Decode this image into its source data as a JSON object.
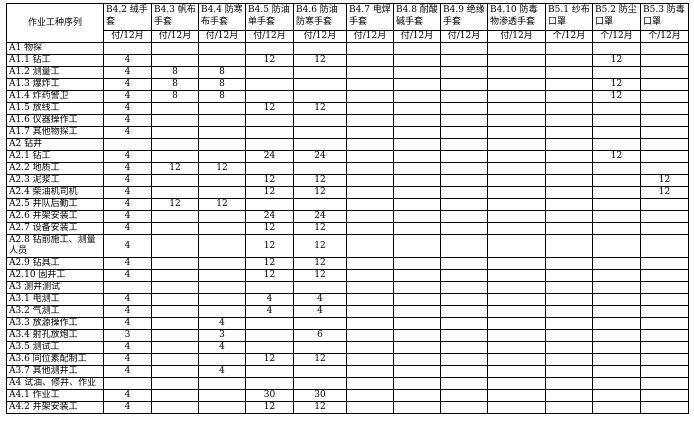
{
  "table": {
    "row_header": "作业工种序列",
    "columns": [
      {
        "code": "B4.2 绒手套",
        "unit": "付/12月"
      },
      {
        "code": "B4.3 帆布手套",
        "unit": "付/12月"
      },
      {
        "code": "B4.4 防寒布手套",
        "unit": "付/12月"
      },
      {
        "code": "B4.5 防油单手套",
        "unit": "付/12月"
      },
      {
        "code": "B4.6 防油防寒手套",
        "unit": "付/12月"
      },
      {
        "code": "B4.7 电焊手套",
        "unit": "付/12月"
      },
      {
        "code": "B4.8 耐酸碱手套",
        "unit": "付/12月"
      },
      {
        "code": "B4.9 绝缘手套",
        "unit": "付/12月"
      },
      {
        "code": "B4.10 防毒物渗透手套",
        "unit": "付/12月"
      },
      {
        "code": "B5.1 纱布口罩",
        "unit": "个/12月"
      },
      {
        "code": "B5.2 防尘口罩",
        "unit": "个/12月"
      },
      {
        "code": "B5.3 防毒口罩",
        "unit": "个/12月"
      }
    ],
    "rows": [
      {
        "label": "A1 物探",
        "values": [
          "",
          "",
          "",
          "",
          "",
          "",
          "",
          "",
          "",
          "",
          "",
          ""
        ]
      },
      {
        "label": "A1.1 钻工",
        "values": [
          "4",
          "",
          "",
          "12",
          "12",
          "",
          "",
          "",
          "",
          "",
          "12",
          ""
        ]
      },
      {
        "label": "A1.2 测量工",
        "values": [
          "4",
          "8",
          "8",
          "",
          "",
          "",
          "",
          "",
          "",
          "",
          "",
          ""
        ]
      },
      {
        "label": "A1.3 爆炸工",
        "values": [
          "4",
          "8",
          "8",
          "",
          "",
          "",
          "",
          "",
          "",
          "",
          "12",
          ""
        ]
      },
      {
        "label": "A1.4 炸药警卫",
        "values": [
          "4",
          "8",
          "8",
          "",
          "",
          "",
          "",
          "",
          "",
          "",
          "12",
          ""
        ]
      },
      {
        "label": "A1.5 放线工",
        "values": [
          "4",
          "",
          "",
          "12",
          "12",
          "",
          "",
          "",
          "",
          "",
          "",
          ""
        ]
      },
      {
        "label": "A1.6 仪器操作工",
        "values": [
          "4",
          "",
          "",
          "",
          "",
          "",
          "",
          "",
          "",
          "",
          "",
          ""
        ]
      },
      {
        "label": "A1.7 其他物探工",
        "values": [
          "4",
          "",
          "",
          "",
          "",
          "",
          "",
          "",
          "",
          "",
          "",
          ""
        ]
      },
      {
        "label": "A2 钻井",
        "values": [
          "",
          "",
          "",
          "",
          "",
          "",
          "",
          "",
          "",
          "",
          "",
          ""
        ]
      },
      {
        "label": "A2.1 钻工",
        "values": [
          "4",
          "",
          "",
          "24",
          "24",
          "",
          "",
          "",
          "",
          "",
          "12",
          ""
        ]
      },
      {
        "label": "A2.2 地质工",
        "values": [
          "4",
          "12",
          "12",
          "",
          "",
          "",
          "",
          "",
          "",
          "",
          "",
          ""
        ]
      },
      {
        "label": "A2.3 泥浆工",
        "values": [
          "4",
          "",
          "",
          "12",
          "12",
          "",
          "",
          "",
          "",
          "",
          "",
          "12"
        ]
      },
      {
        "label": "A2.4 柴油机司机",
        "values": [
          "4",
          "",
          "",
          "12",
          "12",
          "",
          "",
          "",
          "",
          "",
          "",
          "12"
        ]
      },
      {
        "label": "A2.5 井队后勤工",
        "values": [
          "4",
          "12",
          "12",
          "",
          "",
          "",
          "",
          "",
          "",
          "",
          "",
          ""
        ]
      },
      {
        "label": "A2.6 井架安装工",
        "values": [
          "4",
          "",
          "",
          "24",
          "24",
          "",
          "",
          "",
          "",
          "",
          "",
          ""
        ]
      },
      {
        "label": "A2.7 设备安装工",
        "values": [
          "4",
          "",
          "",
          "12",
          "12",
          "",
          "",
          "",
          "",
          "",
          "",
          ""
        ]
      },
      {
        "label": "A2.8 钻前施工、测量人员",
        "values": [
          "4",
          "",
          "",
          "12",
          "12",
          "",
          "",
          "",
          "",
          "",
          "",
          ""
        ]
      },
      {
        "label": "A2.9 钻具工",
        "values": [
          "4",
          "",
          "",
          "12",
          "12",
          "",
          "",
          "",
          "",
          "",
          "",
          ""
        ]
      },
      {
        "label": "A2.10 固井工",
        "values": [
          "4",
          "",
          "",
          "12",
          "12",
          "",
          "",
          "",
          "",
          "",
          "",
          ""
        ]
      },
      {
        "label": "A3 测井测试",
        "values": [
          "",
          "",
          "",
          "",
          "",
          "",
          "",
          "",
          "",
          "",
          "",
          ""
        ]
      },
      {
        "label": "A3.1 电测工",
        "values": [
          "4",
          "",
          "",
          "4",
          "4",
          "",
          "",
          "",
          "",
          "",
          "",
          ""
        ]
      },
      {
        "label": "A3.2 气测工",
        "values": [
          "4",
          "",
          "",
          "4",
          "4",
          "",
          "",
          "",
          "",
          "",
          "",
          ""
        ]
      },
      {
        "label": "A3.3 放源操作工",
        "values": [
          "4",
          "",
          "4",
          "",
          "",
          "",
          "",
          "",
          "",
          "",
          "",
          ""
        ]
      },
      {
        "label": "A3.4 射孔放炮工",
        "values": [
          "3",
          "",
          "3",
          "",
          "6",
          "",
          "",
          "",
          "",
          "",
          "",
          ""
        ]
      },
      {
        "label": "A3.5 测试工",
        "values": [
          "4",
          "",
          "4",
          "",
          "",
          "",
          "",
          "",
          "",
          "",
          "",
          ""
        ]
      },
      {
        "label": "A3.6 同位素配制工",
        "values": [
          "4",
          "",
          "",
          "12",
          "12",
          "",
          "",
          "",
          "",
          "",
          "",
          ""
        ]
      },
      {
        "label": "A3.7 其他测井工",
        "values": [
          "4",
          "",
          "4",
          "",
          "",
          "",
          "",
          "",
          "",
          "",
          "",
          ""
        ]
      },
      {
        "label": "A4 试油、修井、作业",
        "values": [
          "",
          "",
          "",
          "",
          "",
          "",
          "",
          "",
          "",
          "",
          "",
          ""
        ]
      },
      {
        "label": "A4.1 作业工",
        "values": [
          "4",
          "",
          "",
          "30",
          "30",
          "",
          "",
          "",
          "",
          "",
          "",
          ""
        ]
      },
      {
        "label": "A4.2 井架安装工",
        "values": [
          "4",
          "",
          "",
          "12",
          "12",
          "",
          "",
          "",
          "",
          "",
          "",
          ""
        ]
      }
    ]
  }
}
